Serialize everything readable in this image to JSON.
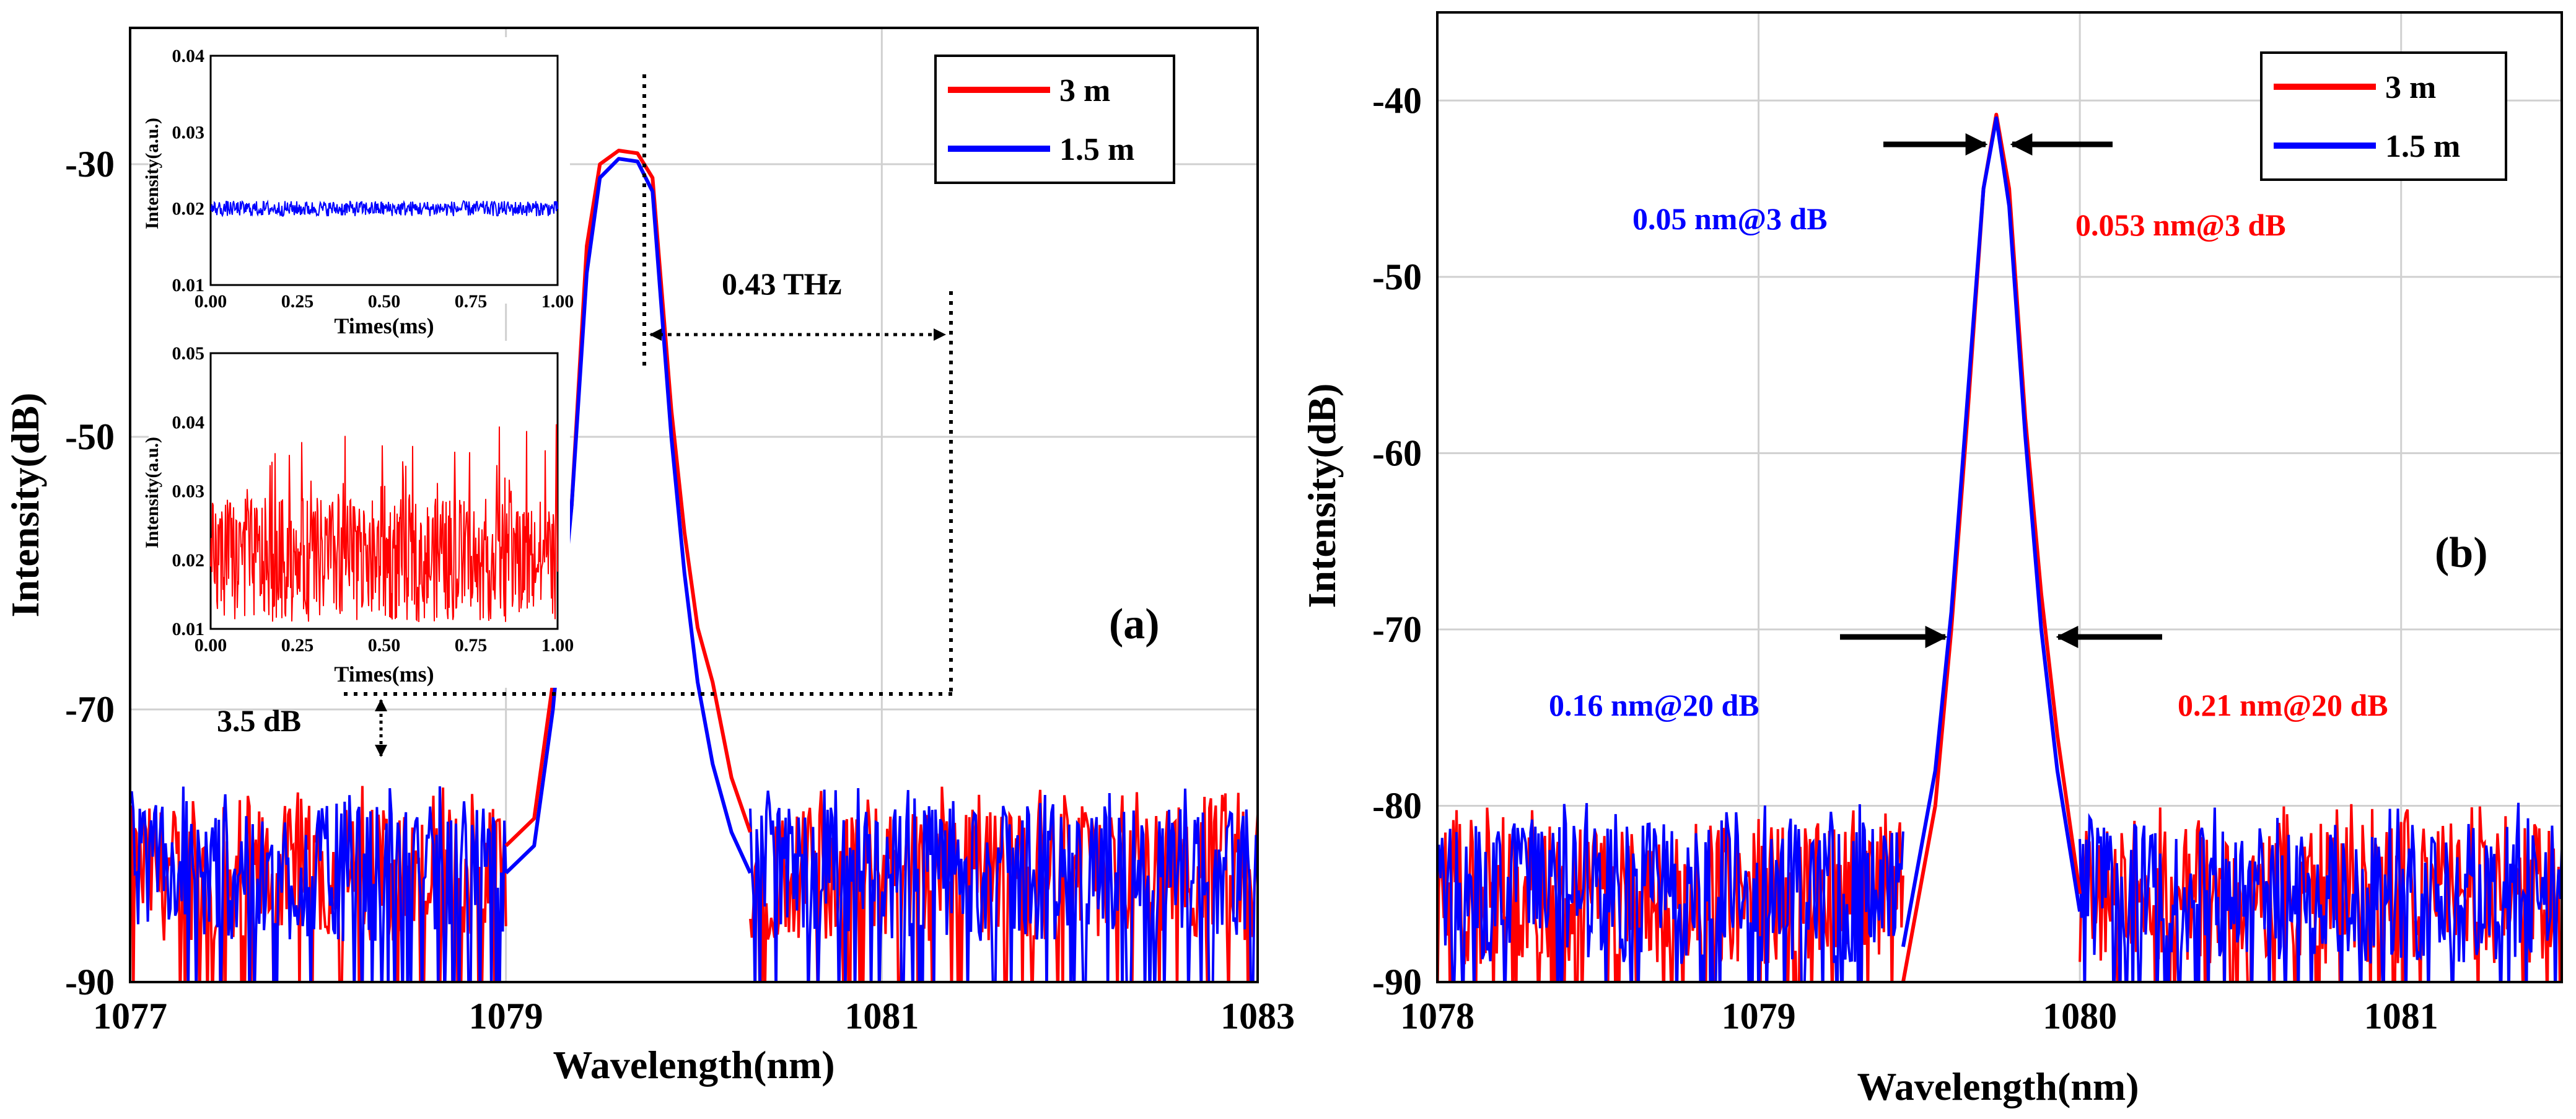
{
  "figure": {
    "panels": [
      "(a)",
      "(b)"
    ]
  },
  "chart_data": [
    {
      "id": "a",
      "type": "line",
      "panel_label": "(a)",
      "xlabel": "Wavelength(nm)",
      "ylabel": "Intensity(dB)",
      "xlim": [
        1077,
        1083
      ],
      "ylim": [
        -90,
        -20
      ],
      "xticks": [
        1077,
        1079,
        1081,
        1083
      ],
      "yticks": [
        -90,
        -70,
        -50,
        -30
      ],
      "grid": true,
      "legend_position": "top-right",
      "noise_floor": -82,
      "series": [
        {
          "name": "3 m",
          "color": "#ff0000",
          "peak": [
            [
              1079.0,
              -80
            ],
            [
              1079.15,
              -78
            ],
            [
              1079.25,
              -68
            ],
            [
              1079.35,
              -55
            ],
            [
              1079.43,
              -36
            ],
            [
              1079.5,
              -30
            ],
            [
              1079.6,
              -29
            ],
            [
              1079.7,
              -29.2
            ],
            [
              1079.78,
              -31
            ],
            [
              1079.88,
              -48
            ],
            [
              1079.95,
              -57
            ],
            [
              1080.02,
              -64
            ],
            [
              1080.1,
              -68
            ],
            [
              1080.2,
              -75
            ],
            [
              1080.3,
              -79
            ]
          ]
        },
        {
          "name": "1.5 m",
          "color": "#0000ff",
          "peak": [
            [
              1079.0,
              -82
            ],
            [
              1079.15,
              -80
            ],
            [
              1079.25,
              -70
            ],
            [
              1079.35,
              -55
            ],
            [
              1079.43,
              -38
            ],
            [
              1079.5,
              -31
            ],
            [
              1079.6,
              -29.6
            ],
            [
              1079.7,
              -29.8
            ],
            [
              1079.78,
              -32
            ],
            [
              1079.88,
              -50
            ],
            [
              1079.95,
              -60
            ],
            [
              1080.02,
              -68
            ],
            [
              1080.1,
              -74
            ],
            [
              1080.2,
              -79
            ],
            [
              1080.3,
              -82
            ]
          ]
        }
      ],
      "annotations": {
        "frequency_label": "0.43 THz",
        "floor_label": "3.5 dB",
        "peak_x": 1079.6,
        "side_x": 1081.4,
        "side_level": -69.2,
        "side_level_low": -72.5,
        "floor_marker_x": 1078.3
      },
      "insets": [
        {
          "id": "inset-top",
          "color": "#0000ff",
          "xlabel": "Times(ms)",
          "ylabel": "Intensity(a.u.)",
          "xlim": [
            0,
            1
          ],
          "ylim": [
            0.01,
            0.04
          ],
          "xticks": [
            "0.00",
            "0.25",
            "0.50",
            "0.75",
            "1.00"
          ],
          "yticks": [
            "0.01",
            "0.02",
            "0.03",
            "0.04"
          ],
          "mean": 0.02,
          "spread": 0.002
        },
        {
          "id": "inset-bottom",
          "color": "#ff0000",
          "xlabel": "Times(ms)",
          "ylabel": "Intensity(a.u.)",
          "xlim": [
            0,
            1
          ],
          "ylim": [
            0.01,
            0.05
          ],
          "xticks": [
            "0.00",
            "0.25",
            "0.50",
            "0.75",
            "1.00"
          ],
          "yticks": [
            "0.01",
            "0.02",
            "0.03",
            "0.04",
            "0.05"
          ],
          "mean": 0.02,
          "spread": 0.018
        }
      ]
    },
    {
      "id": "b",
      "type": "line",
      "panel_label": "(b)",
      "xlabel": "Wavelength(nm)",
      "ylabel": "Intensity(dB)",
      "xlim": [
        1078,
        1081.5
      ],
      "ylim": [
        -90,
        -35
      ],
      "xticks": [
        1078,
        1079,
        1080,
        1081
      ],
      "yticks": [
        -90,
        -80,
        -70,
        -60,
        -50,
        -40
      ],
      "grid": true,
      "legend_position": "top-right",
      "noise_floor": -85,
      "series": [
        {
          "name": "3 m",
          "color": "#ff0000",
          "peak": [
            [
              1079.45,
              -90
            ],
            [
              1079.55,
              -80
            ],
            [
              1079.6,
              -70
            ],
            [
              1079.65,
              -58
            ],
            [
              1079.7,
              -45
            ],
            [
              1079.74,
              -40.8
            ],
            [
              1079.78,
              -45
            ],
            [
              1079.83,
              -58
            ],
            [
              1079.88,
              -68
            ],
            [
              1079.93,
              -76
            ],
            [
              1080.0,
              -85
            ]
          ]
        },
        {
          "name": "1.5 m",
          "color": "#0000ff",
          "peak": [
            [
              1079.45,
              -88
            ],
            [
              1079.55,
              -78
            ],
            [
              1079.6,
              -69
            ],
            [
              1079.65,
              -57
            ],
            [
              1079.7,
              -45
            ],
            [
              1079.74,
              -41
            ],
            [
              1079.78,
              -46
            ],
            [
              1079.83,
              -59
            ],
            [
              1079.88,
              -70
            ],
            [
              1079.93,
              -78
            ],
            [
              1080.0,
              -86
            ]
          ]
        }
      ],
      "annotations": [
        {
          "text": "0.05 nm@3 dB",
          "color": "#0000ff"
        },
        {
          "text": "0.053 nm@3 dB",
          "color": "#ff0000"
        },
        {
          "text": "0.16 nm@20 dB",
          "color": "#0000ff"
        },
        {
          "text": "0.21 nm@20 dB",
          "color": "#ff0000"
        }
      ]
    }
  ]
}
